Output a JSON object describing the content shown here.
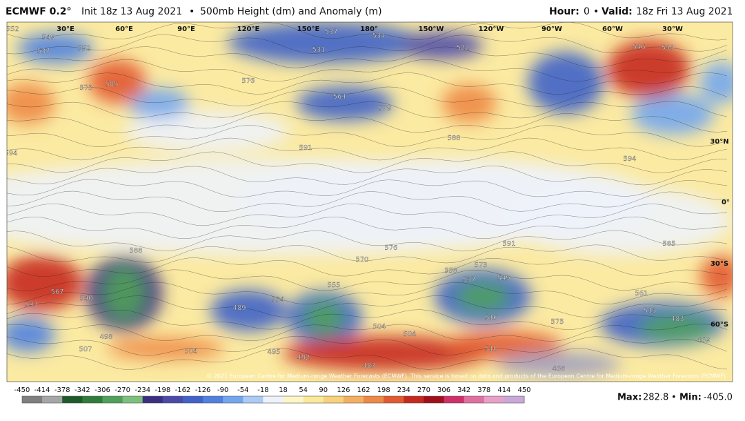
{
  "header": {
    "model": "ECMWF 0.2°",
    "init": "Init 18z 13 Aug 2021",
    "sep": "•",
    "product": "500mb Height (dm) and Anomaly (m)",
    "hour_label": "Hour:",
    "hour": "0",
    "sep2": "•",
    "valid_label": "Valid:",
    "valid": "18z Fri 13 Aug 2021"
  },
  "map": {
    "longitudes": [
      "30°E",
      "60°E",
      "90°E",
      "120°E",
      "150°E",
      "180°",
      "150°W",
      "120°W",
      "90°W",
      "60°W",
      "30°W"
    ],
    "latitudes": [
      "30°N",
      "0°",
      "30°S",
      "60°S"
    ],
    "contour_labels": [
      "552",
      "549",
      "537",
      "552",
      "573",
      "585",
      "576",
      "564",
      "579",
      "591",
      "594",
      "588",
      "591",
      "588",
      "570",
      "555",
      "537",
      "549",
      "510",
      "543",
      "567",
      "540",
      "489",
      "534",
      "498",
      "507",
      "504",
      "495",
      "492",
      "483",
      "468",
      "504",
      "504",
      "516",
      "575",
      "561",
      "513",
      "483",
      "459",
      "546",
      "549",
      "594",
      "585",
      "576",
      "573",
      "558",
      "522",
      "531",
      "534",
      "537"
    ]
  },
  "copyright": "© 2021 European Centre for Medium-range Weather Forecasts (ECMWF). This service is based on data and products of the European Centre for Medium-range Weather Forecasts (ECMWF)",
  "colorbar": {
    "ticks": [
      -450,
      -414,
      -378,
      -342,
      -306,
      -270,
      -234,
      -198,
      -162,
      -126,
      -90,
      -54,
      -18,
      18,
      54,
      90,
      126,
      162,
      198,
      234,
      270,
      306,
      342,
      378,
      414,
      450
    ],
    "colors": [
      "#7f7f7f",
      "#a6a6a6",
      "#1e5a2a",
      "#2e7d3a",
      "#4fa05a",
      "#7cc07c",
      "#3a2f80",
      "#4a4aa8",
      "#3f63c8",
      "#4f82e0",
      "#72a6ee",
      "#a9cbf6",
      "#eef2fa",
      "#fdf6c8",
      "#fbe99a",
      "#f8d27a",
      "#f4b060",
      "#ee8a46",
      "#e25a30",
      "#c62a1e",
      "#a0101a",
      "#d0306a",
      "#e070a0",
      "#e8a0c8",
      "#c8a8d8"
    ]
  },
  "stats": {
    "max_label": "Max:",
    "max": "282.8",
    "sep": "•",
    "min_label": "Min:",
    "min": "-405.0"
  }
}
